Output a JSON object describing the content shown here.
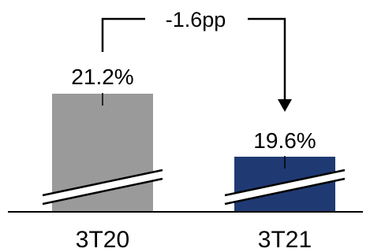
{
  "chart_data": {
    "type": "bar",
    "categories": [
      "3T20",
      "3T21"
    ],
    "values": [
      21.2,
      19.6
    ],
    "value_labels": [
      "21.2%",
      "19.6%"
    ],
    "unit": "%",
    "axis_break": true,
    "annotation": "-1.6pp",
    "colors": [
      "#9a9a9a",
      "#1f3a73"
    ],
    "grid": false,
    "legend": "none"
  }
}
